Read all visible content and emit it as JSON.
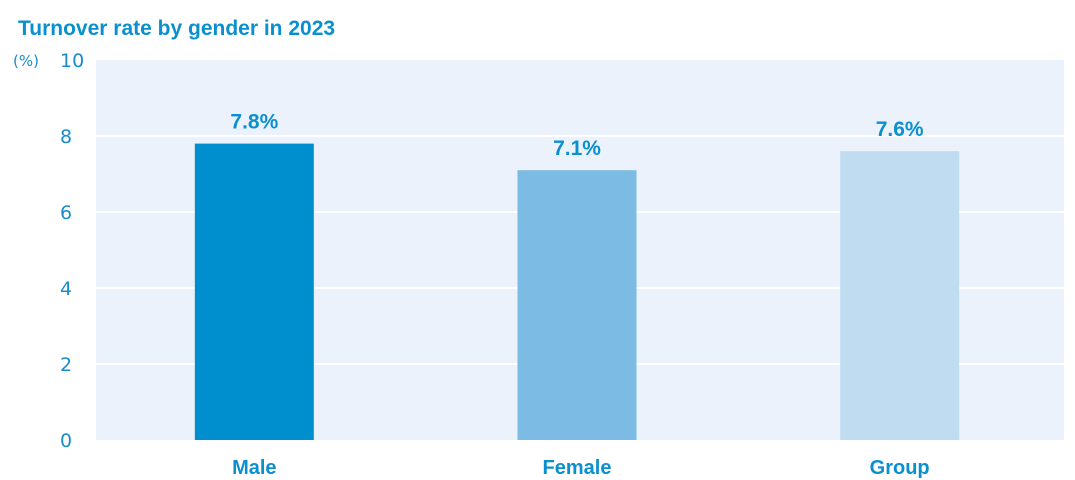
{
  "chart_data": {
    "type": "bar",
    "title": "Turnover rate by gender in 2023",
    "y_unit": "(%)",
    "xlabel": "",
    "ylabel": "",
    "categories": [
      "Male",
      "Female",
      "Group"
    ],
    "values": [
      7.8,
      7.1,
      7.6
    ],
    "data_labels": [
      "7.8%",
      "7.1%",
      "7.6%"
    ],
    "bar_colors": [
      "#008fce",
      "#7bbbe4",
      "#c0dcf0"
    ],
    "plot_background": "#ebf2fb",
    "ylim": [
      0,
      10
    ],
    "yticks": [
      0,
      2,
      4,
      6,
      8,
      10
    ],
    "grid": true,
    "legend": "none"
  }
}
